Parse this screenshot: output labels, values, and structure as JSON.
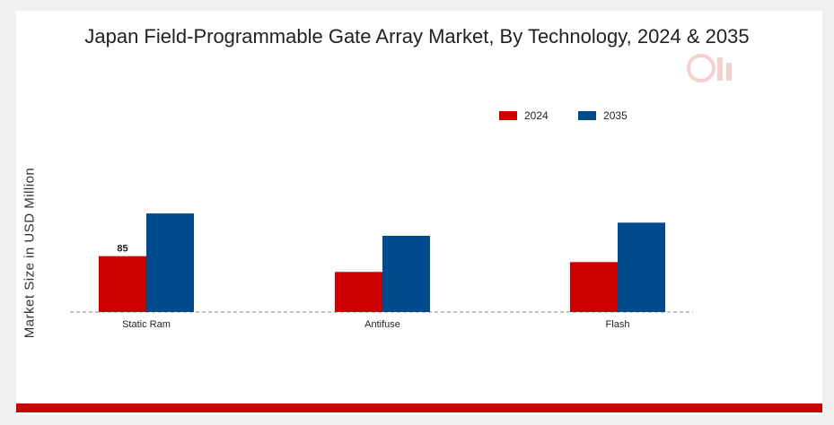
{
  "title": "Japan Field-Programmable Gate Array Market, By Technology, 2024 & 2035",
  "colors": {
    "series_2024": "#cc0000",
    "series_2035": "#004b8d",
    "footer": "#cc0000",
    "baseline": "#888888"
  },
  "watermark_icon": "brand-logo-icon",
  "chart_data": {
    "type": "bar",
    "title": "Japan Field-Programmable Gate Array Market, By Technology, 2024 & 2035",
    "xlabel": "",
    "ylabel": "Market Size in USD Million",
    "categories": [
      "Static Ram",
      "Antifuse",
      "Flash"
    ],
    "series": [
      {
        "name": "2024",
        "values": [
          85,
          61,
          76
        ]
      },
      {
        "name": "2035",
        "values": [
          150,
          116,
          136
        ]
      }
    ],
    "data_labels": [
      {
        "series": 0,
        "index": 0,
        "text": "85"
      }
    ],
    "ylim": [
      0,
      250
    ],
    "grid": false,
    "legend": "top-right"
  }
}
